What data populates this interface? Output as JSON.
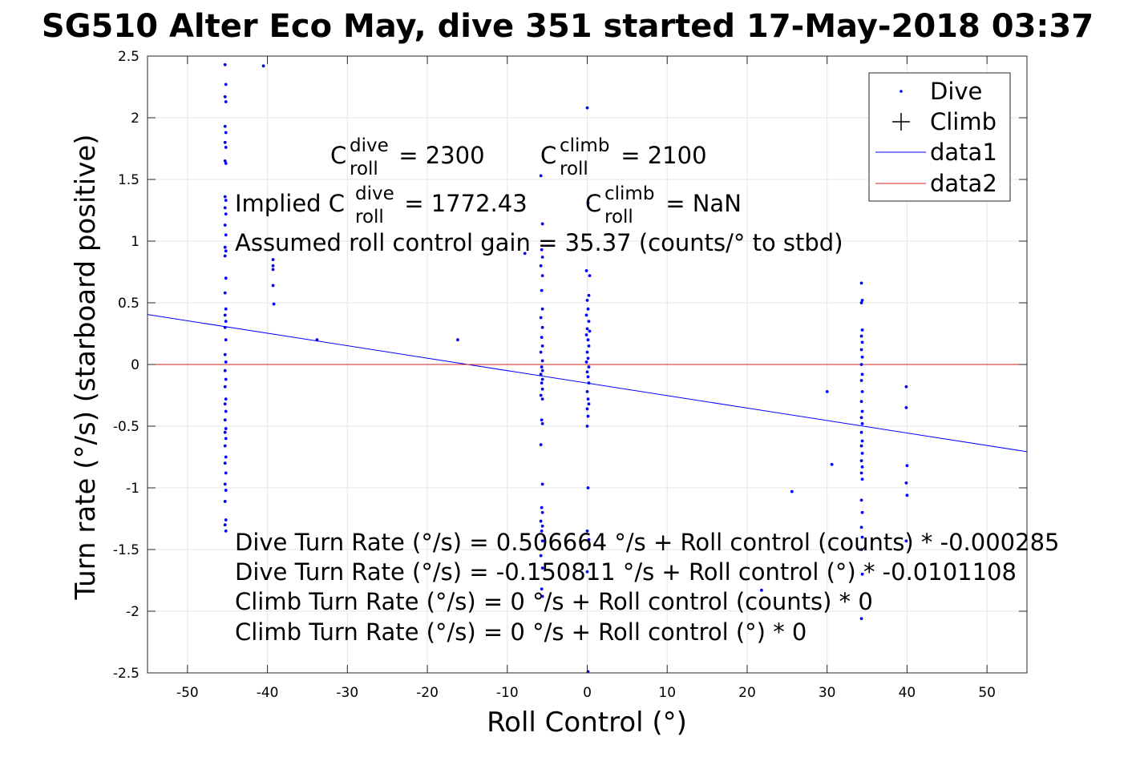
{
  "chart_data": {
    "type": "scatter",
    "title": "SG510 Alter Eco May, dive 351 started 17-May-2018 03:37",
    "xlabel": "Roll Control (°)",
    "ylabel": "Turn rate (°/s) (starboard positive)",
    "xlim": [
      -55,
      55
    ],
    "ylim": [
      -2.5,
      2.5
    ],
    "xticks": [
      "-50",
      "-40",
      "-30",
      "-20",
      "-10",
      "0",
      "10",
      "20",
      "30",
      "40",
      "50"
    ],
    "yticks": [
      "2.5",
      "2",
      "1.5",
      "1",
      "0.5",
      "0",
      "-0.5",
      "-1",
      "-1.5",
      "-2",
      "-2.5"
    ],
    "grid": true,
    "legend_position": "top-right",
    "legend": [
      {
        "label": "Dive",
        "marker": "dot",
        "color": "#0000ff"
      },
      {
        "label": "Climb",
        "marker": "plus",
        "color": "#000000"
      },
      {
        "label": "data1",
        "marker": "line",
        "color": "#0000ff"
      },
      {
        "label": "data2",
        "marker": "line",
        "color": "#cc2222"
      }
    ],
    "annotations": {
      "c_dive": {
        "base": "C",
        "sup": "dive",
        "sub": "roll",
        "rest": " = 2300"
      },
      "c_climb": {
        "base": "C",
        "sup": "climb",
        "sub": "roll",
        "rest": " = 2100"
      },
      "implied_dive": {
        "prefix": "Implied C",
        "sup": "dive",
        "sub": "roll",
        "rest": " = 1772.43"
      },
      "implied_climb": {
        "base": "C",
        "sup": "climb",
        "sub": "roll",
        "rest": " = NaN"
      },
      "gain": "Assumed roll control gain = 35.37 (counts/° to stbd)",
      "eq1": "Dive Turn Rate (°/s) = 0.506664 °/s + Roll control (counts) * -0.000285",
      "eq2": "Dive Turn Rate (°/s) = -0.150811 °/s + Roll control (°) * -0.0101108",
      "eq3": "Climb Turn Rate (°/s) = 0 °/s + Roll control (counts) * 0",
      "eq4": "Climb Turn Rate (°/s) = 0 °/s + Roll control (°) * 0"
    },
    "series": [
      {
        "name": "Dive",
        "type": "scatter",
        "color": "#0000ff",
        "points": [
          [
            -45.3,
            2.43
          ],
          [
            -45.2,
            2.27
          ],
          [
            -45.3,
            2.17
          ],
          [
            -45.2,
            2.13
          ],
          [
            -45.3,
            1.93
          ],
          [
            -45.2,
            1.88
          ],
          [
            -45.3,
            1.8
          ],
          [
            -45.2,
            1.76
          ],
          [
            -45.3,
            1.65
          ],
          [
            -45.2,
            1.63
          ],
          [
            -45.3,
            1.36
          ],
          [
            -45.2,
            1.33
          ],
          [
            -45.3,
            1.27
          ],
          [
            -45.2,
            1.22
          ],
          [
            -45.3,
            1.13
          ],
          [
            -45.2,
            1.05
          ],
          [
            -45.3,
            0.95
          ],
          [
            -45.2,
            0.92
          ],
          [
            -45.3,
            0.88
          ],
          [
            -45.2,
            0.7
          ],
          [
            -45.3,
            0.58
          ],
          [
            -45.2,
            0.45
          ],
          [
            -45.3,
            0.4
          ],
          [
            -45.2,
            0.35
          ],
          [
            -45.3,
            0.3
          ],
          [
            -45.2,
            0.2
          ],
          [
            -45.3,
            0.08
          ],
          [
            -45.2,
            0.02
          ],
          [
            -45.3,
            -0.05
          ],
          [
            -45.2,
            -0.12
          ],
          [
            -45.3,
            -0.18
          ],
          [
            -45.2,
            -0.28
          ],
          [
            -45.3,
            -0.32
          ],
          [
            -45.2,
            -0.38
          ],
          [
            -45.3,
            -0.45
          ],
          [
            -45.2,
            -0.52
          ],
          [
            -45.3,
            -0.55
          ],
          [
            -45.2,
            -0.6
          ],
          [
            -45.3,
            -0.66
          ],
          [
            -45.2,
            -0.75
          ],
          [
            -45.3,
            -0.8
          ],
          [
            -45.2,
            -0.88
          ],
          [
            -45.3,
            -0.97
          ],
          [
            -45.2,
            -1.02
          ],
          [
            -45.3,
            -1.11
          ],
          [
            -45.2,
            -1.26
          ],
          [
            -45.3,
            -1.3
          ],
          [
            -45.2,
            -1.35
          ],
          [
            -40.5,
            2.42
          ],
          [
            -39.3,
            0.85
          ],
          [
            -39.3,
            0.8
          ],
          [
            -39.3,
            0.77
          ],
          [
            -39.3,
            0.64
          ],
          [
            -39.2,
            0.49
          ],
          [
            -33.8,
            0.2
          ],
          [
            -16.2,
            0.2
          ],
          [
            -7.8,
            0.9
          ],
          [
            -5.8,
            1.53
          ],
          [
            -5.6,
            1.14
          ],
          [
            -5.7,
            0.93
          ],
          [
            -5.6,
            0.87
          ],
          [
            -5.8,
            0.8
          ],
          [
            -5.6,
            0.72
          ],
          [
            -5.7,
            0.6
          ],
          [
            -5.6,
            0.45
          ],
          [
            -5.8,
            0.38
          ],
          [
            -5.6,
            0.3
          ],
          [
            -5.7,
            0.22
          ],
          [
            -5.6,
            0.15
          ],
          [
            -5.8,
            0.1
          ],
          [
            -5.6,
            0.03
          ],
          [
            -5.7,
            -0.02
          ],
          [
            -5.6,
            -0.05
          ],
          [
            -5.8,
            -0.08
          ],
          [
            -5.6,
            -0.12
          ],
          [
            -5.7,
            -0.15
          ],
          [
            -5.6,
            -0.2
          ],
          [
            -5.8,
            -0.25
          ],
          [
            -5.6,
            -0.28
          ],
          [
            -5.7,
            -0.45
          ],
          [
            -5.6,
            -0.48
          ],
          [
            -5.8,
            -0.65
          ],
          [
            -5.6,
            -0.97
          ],
          [
            -5.7,
            -1.16
          ],
          [
            -5.6,
            -1.2
          ],
          [
            -5.8,
            -1.27
          ],
          [
            -5.6,
            -1.31
          ],
          [
            -5.7,
            -1.35
          ],
          [
            -5.6,
            -1.43
          ],
          [
            -5.8,
            -1.55
          ],
          [
            -5.6,
            -1.65
          ],
          [
            -5.7,
            -1.82
          ],
          [
            -5.6,
            -1.88
          ],
          [
            0.0,
            2.08
          ],
          [
            0.1,
            1.31
          ],
          [
            -0.1,
            0.76
          ],
          [
            0.3,
            0.72
          ],
          [
            0.2,
            0.56
          ],
          [
            0.0,
            0.52
          ],
          [
            0.1,
            0.45
          ],
          [
            -0.1,
            0.4
          ],
          [
            0.2,
            0.35
          ],
          [
            0.0,
            0.29
          ],
          [
            0.3,
            0.27
          ],
          [
            -0.1,
            0.24
          ],
          [
            0.1,
            0.2
          ],
          [
            0.2,
            0.15
          ],
          [
            0.0,
            0.1
          ],
          [
            0.1,
            0.05
          ],
          [
            -0.1,
            0.02
          ],
          [
            0.2,
            -0.02
          ],
          [
            0.0,
            -0.06
          ],
          [
            0.1,
            -0.1
          ],
          [
            0.2,
            -0.15
          ],
          [
            0.0,
            -0.22
          ],
          [
            0.1,
            -0.28
          ],
          [
            0.2,
            -0.32
          ],
          [
            0.0,
            -0.36
          ],
          [
            0.1,
            -0.42
          ],
          [
            0.0,
            -0.5
          ],
          [
            0.1,
            -1.0
          ],
          [
            0.0,
            -1.35
          ],
          [
            0.2,
            -1.42
          ],
          [
            0.0,
            -1.68
          ],
          [
            0.1,
            -2.49
          ],
          [
            21.8,
            -1.83
          ],
          [
            25.6,
            -1.03
          ],
          [
            30.0,
            -0.22
          ],
          [
            30.6,
            -0.81
          ],
          [
            34.3,
            0.66
          ],
          [
            34.4,
            0.52
          ],
          [
            34.3,
            0.5
          ],
          [
            34.4,
            0.28
          ],
          [
            34.3,
            0.23
          ],
          [
            34.4,
            0.18
          ],
          [
            34.3,
            0.12
          ],
          [
            34.4,
            0.06
          ],
          [
            34.3,
            0.0
          ],
          [
            34.4,
            -0.08
          ],
          [
            34.3,
            -0.13
          ],
          [
            34.4,
            -0.22
          ],
          [
            34.3,
            -0.3
          ],
          [
            34.4,
            -0.38
          ],
          [
            34.3,
            -0.43
          ],
          [
            34.4,
            -0.48
          ],
          [
            34.3,
            -0.55
          ],
          [
            34.4,
            -0.62
          ],
          [
            34.3,
            -0.66
          ],
          [
            34.4,
            -0.72
          ],
          [
            34.3,
            -0.78
          ],
          [
            34.4,
            -0.83
          ],
          [
            34.3,
            -0.88
          ],
          [
            34.4,
            -0.93
          ],
          [
            34.3,
            -1.1
          ],
          [
            34.4,
            -1.2
          ],
          [
            34.3,
            -1.32
          ],
          [
            34.4,
            -1.4
          ],
          [
            34.3,
            -1.5
          ],
          [
            34.4,
            -1.7
          ],
          [
            34.3,
            -2.06
          ],
          [
            39.9,
            -0.18
          ],
          [
            39.9,
            -0.35
          ],
          [
            40.0,
            -0.82
          ],
          [
            39.9,
            -0.96
          ],
          [
            40.0,
            -1.06
          ],
          [
            39.9,
            -1.43
          ]
        ]
      },
      {
        "name": "Climb",
        "type": "scatter",
        "color": "#000000",
        "points": []
      },
      {
        "name": "data1",
        "type": "line",
        "color": "#0000ff",
        "x": [
          -55,
          55
        ],
        "y": [
          0.405,
          -0.707
        ]
      },
      {
        "name": "data2",
        "type": "line",
        "color": "#cc2222",
        "x": [
          -55,
          55
        ],
        "y": [
          0,
          0
        ]
      }
    ]
  }
}
